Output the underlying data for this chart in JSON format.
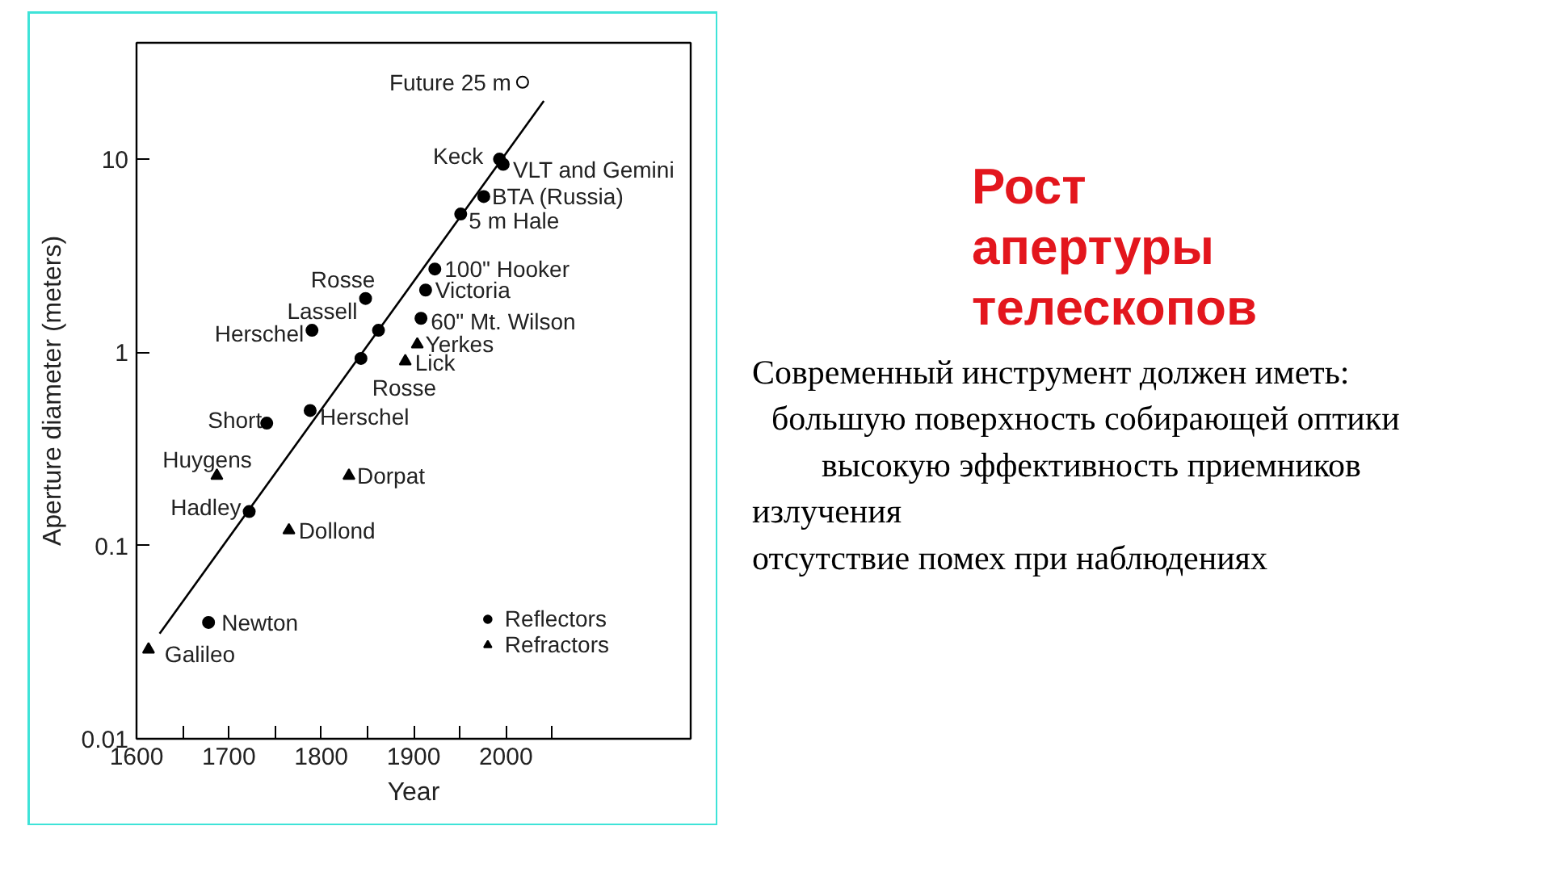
{
  "chart_data": {
    "type": "scatter",
    "title": "Рост апертуры телескопов",
    "xlabel": "Year",
    "ylabel": "Aperture diameter (meters)",
    "xlim": [
      1600,
      2200
    ],
    "ylim": [
      0.01,
      40
    ],
    "log": "y",
    "xticks": [
      1600,
      {
        "value": 1650,
        "label": null
      },
      1700,
      {
        "value": 1750,
        "label": null
      },
      1800,
      {
        "value": 1850,
        "label": null
      },
      1900,
      {
        "value": 1950,
        "label": null
      },
      2000,
      {
        "value": 2050,
        "label": null
      }
    ],
    "yticks": [
      0.01,
      0.1,
      1,
      10
    ],
    "grid": false,
    "legend": "bottom right",
    "series": [
      {
        "name": "Reflectors",
        "marker": "circle",
        "color": "#000000",
        "x": [
          1993,
          1997,
          1976,
          1951,
          1923,
          1913,
          1908,
          1848,
          1862,
          1790,
          1843,
          1788,
          1741,
          1722,
          1678
        ],
        "values": [
          10,
          9.4,
          6.4,
          5.2,
          2.7,
          2.1,
          1.5,
          1.9,
          1.3,
          1.3,
          0.93,
          0.5,
          0.43,
          0.15,
          0.04
        ]
      },
      {
        "name": "Refractors",
        "marker": "triangle",
        "color": "#000000",
        "x": [
          1904,
          1891,
          1687,
          1830,
          1765,
          1613
        ],
        "values": [
          1.1,
          0.9,
          0.23,
          0.23,
          0.12,
          0.029
        ]
      },
      {
        "marker": "circle",
        "color": "#ffffff",
        "x": [
          2018
        ],
        "values": [
          25
        ]
      },
      {
        "type": "line",
        "color": "#000000",
        "x": [
          1625,
          2041
        ],
        "values": [
          0.035,
          20
        ]
      }
    ],
    "annotations": [
      {
        "text": "Future 25 m",
        "x": 2018,
        "y": 25
      },
      {
        "text": "Keck",
        "x": 1993,
        "y": 10
      },
      {
        "text": "VLT and Gemini",
        "x": 1997,
        "y": 9.4
      },
      {
        "text": "BTA (Russia)",
        "x": 1976,
        "y": 6.4
      },
      {
        "text": "5 m Hale",
        "x": 1951,
        "y": 5.2
      },
      {
        "text": "100\" Hooker",
        "x": 1923,
        "y": 2.7
      },
      {
        "text": "Victoria",
        "x": 1913,
        "y": 2.1
      },
      {
        "text": "60\" Mt. Wilson",
        "x": 1908,
        "y": 1.5
      },
      {
        "text": "Rosse",
        "x": 1848,
        "y": 1.9
      },
      {
        "text": "Lassell",
        "x": 1862,
        "y": 1.3
      },
      {
        "text": "Herschel",
        "x": 1790,
        "y": 1.3
      },
      {
        "text": "Yerkes",
        "x": 1904,
        "y": 1.1
      },
      {
        "text": "Lick",
        "x": 1891,
        "y": 0.9
      },
      {
        "text": "Rosse",
        "x": 1843,
        "y": 0.93
      },
      {
        "text": "Short",
        "x": 1741,
        "y": 0.43
      },
      {
        "text": "Herschel",
        "x": 1788,
        "y": 0.5
      },
      {
        "text": "Huygens",
        "x": 1687,
        "y": 0.23
      },
      {
        "text": "Dorpat",
        "x": 1830,
        "y": 0.23
      },
      {
        "text": "Hadley",
        "x": 1722,
        "y": 0.15
      },
      {
        "text": "Dollond",
        "x": 1765,
        "y": 0.12
      },
      {
        "text": "Newton",
        "x": 1678,
        "y": 0.04
      },
      {
        "text": "Galileo",
        "x": 1613,
        "y": 0.029
      },
      "Современный инструмент должен иметь:",
      "большую поверхность собирающей оптики",
      "высокую эффективность приемников излучения",
      "отсутствие помех при наблюдениях"
    ]
  }
}
